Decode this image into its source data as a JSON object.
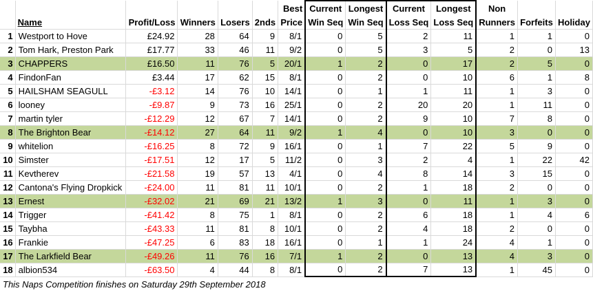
{
  "headers": {
    "name": "Name",
    "profit": "Profit/Loss",
    "winners": "Winners",
    "losers": "Losers",
    "seconds": "2nds",
    "best_top": "Best",
    "best_bottom": "Price",
    "cur_win_top": "Current",
    "cur_win_bottom": "Win Seq",
    "long_win_top": "Longest",
    "long_win_bottom": "Win Seq",
    "cur_loss_top": "Current",
    "cur_loss_bottom": "Loss Seq",
    "long_loss_top": "Longest",
    "long_loss_bottom": "Loss Seq",
    "non_top": "Non",
    "non_bottom": "Runners",
    "forfeits": "Forfeits",
    "holiday": "Holiday"
  },
  "rows": [
    {
      "rank": "1",
      "name": "Westport to Hove",
      "profit": "£24.92",
      "winners": "28",
      "losers": "64",
      "seconds": "9",
      "best": "8/1",
      "cur_win": "0",
      "long_win": "5",
      "cur_loss": "2",
      "long_loss": "11",
      "non": "1",
      "forfeits": "1",
      "holiday": "0",
      "highlight": false,
      "negative": false
    },
    {
      "rank": "2",
      "name": "Tom Hark, Preston Park",
      "profit": "£17.77",
      "winners": "33",
      "losers": "46",
      "seconds": "11",
      "best": "9/2",
      "cur_win": "0",
      "long_win": "5",
      "cur_loss": "3",
      "long_loss": "5",
      "non": "2",
      "forfeits": "0",
      "holiday": "13",
      "highlight": false,
      "negative": false
    },
    {
      "rank": "3",
      "name": "CHAPPERS",
      "profit": "£16.50",
      "winners": "11",
      "losers": "76",
      "seconds": "5",
      "best": "20/1",
      "cur_win": "1",
      "long_win": "2",
      "cur_loss": "0",
      "long_loss": "17",
      "non": "2",
      "forfeits": "5",
      "holiday": "0",
      "highlight": true,
      "negative": false
    },
    {
      "rank": "4",
      "name": "FindonFan",
      "profit": "£3.44",
      "winners": "17",
      "losers": "62",
      "seconds": "15",
      "best": "8/1",
      "cur_win": "0",
      "long_win": "2",
      "cur_loss": "0",
      "long_loss": "10",
      "non": "6",
      "forfeits": "1",
      "holiday": "8",
      "highlight": false,
      "negative": false
    },
    {
      "rank": "5",
      "name": "HAILSHAM SEAGULL",
      "profit": "-£3.12",
      "winners": "14",
      "losers": "76",
      "seconds": "10",
      "best": "14/1",
      "cur_win": "0",
      "long_win": "1",
      "cur_loss": "1",
      "long_loss": "11",
      "non": "1",
      "forfeits": "3",
      "holiday": "0",
      "highlight": false,
      "negative": true
    },
    {
      "rank": "6",
      "name": "looney",
      "profit": "-£9.87",
      "winners": "9",
      "losers": "73",
      "seconds": "16",
      "best": "25/1",
      "cur_win": "0",
      "long_win": "2",
      "cur_loss": "20",
      "long_loss": "20",
      "non": "1",
      "forfeits": "11",
      "holiday": "0",
      "highlight": false,
      "negative": true
    },
    {
      "rank": "7",
      "name": "martin tyler",
      "profit": "-£12.29",
      "winners": "12",
      "losers": "67",
      "seconds": "7",
      "best": "14/1",
      "cur_win": "0",
      "long_win": "2",
      "cur_loss": "9",
      "long_loss": "10",
      "non": "7",
      "forfeits": "8",
      "holiday": "0",
      "highlight": false,
      "negative": true
    },
    {
      "rank": "8",
      "name": "The Brighton Bear",
      "profit": "-£14.12",
      "winners": "27",
      "losers": "64",
      "seconds": "11",
      "best": "9/2",
      "cur_win": "1",
      "long_win": "4",
      "cur_loss": "0",
      "long_loss": "10",
      "non": "3",
      "forfeits": "0",
      "holiday": "0",
      "highlight": true,
      "negative": true
    },
    {
      "rank": "9",
      "name": "whitelion",
      "profit": "-£16.25",
      "winners": "8",
      "losers": "72",
      "seconds": "9",
      "best": "16/1",
      "cur_win": "0",
      "long_win": "1",
      "cur_loss": "7",
      "long_loss": "22",
      "non": "5",
      "forfeits": "9",
      "holiday": "0",
      "highlight": false,
      "negative": true
    },
    {
      "rank": "10",
      "name": "Simster",
      "profit": "-£17.51",
      "winners": "12",
      "losers": "17",
      "seconds": "5",
      "best": "11/2",
      "cur_win": "0",
      "long_win": "3",
      "cur_loss": "2",
      "long_loss": "4",
      "non": "1",
      "forfeits": "22",
      "holiday": "42",
      "highlight": false,
      "negative": true
    },
    {
      "rank": "11",
      "name": "Kevtherev",
      "profit": "-£21.58",
      "winners": "19",
      "losers": "57",
      "seconds": "13",
      "best": "4/1",
      "cur_win": "0",
      "long_win": "4",
      "cur_loss": "8",
      "long_loss": "14",
      "non": "3",
      "forfeits": "15",
      "holiday": "0",
      "highlight": false,
      "negative": true
    },
    {
      "rank": "12",
      "name": "Cantona's Flying Dropkick",
      "profit": "-£24.00",
      "winners": "11",
      "losers": "81",
      "seconds": "11",
      "best": "10/1",
      "cur_win": "0",
      "long_win": "2",
      "cur_loss": "1",
      "long_loss": "18",
      "non": "2",
      "forfeits": "0",
      "holiday": "0",
      "highlight": false,
      "negative": true
    },
    {
      "rank": "13",
      "name": "Ernest",
      "profit": "-£32.02",
      "winners": "21",
      "losers": "69",
      "seconds": "21",
      "best": "13/2",
      "cur_win": "1",
      "long_win": "3",
      "cur_loss": "0",
      "long_loss": "11",
      "non": "1",
      "forfeits": "3",
      "holiday": "0",
      "highlight": true,
      "negative": true
    },
    {
      "rank": "14",
      "name": "Trigger",
      "profit": "-£41.42",
      "winners": "8",
      "losers": "75",
      "seconds": "1",
      "best": "8/1",
      "cur_win": "0",
      "long_win": "2",
      "cur_loss": "6",
      "long_loss": "18",
      "non": "1",
      "forfeits": "4",
      "holiday": "6",
      "highlight": false,
      "negative": true
    },
    {
      "rank": "15",
      "name": "Taybha",
      "profit": "-£43.33",
      "winners": "11",
      "losers": "81",
      "seconds": "8",
      "best": "10/1",
      "cur_win": "0",
      "long_win": "2",
      "cur_loss": "4",
      "long_loss": "18",
      "non": "2",
      "forfeits": "0",
      "holiday": "0",
      "highlight": false,
      "negative": true
    },
    {
      "rank": "16",
      "name": "Frankie",
      "profit": "-£47.25",
      "winners": "6",
      "losers": "83",
      "seconds": "18",
      "best": "16/1",
      "cur_win": "0",
      "long_win": "1",
      "cur_loss": "1",
      "long_loss": "24",
      "non": "4",
      "forfeits": "1",
      "holiday": "0",
      "highlight": false,
      "negative": true
    },
    {
      "rank": "17",
      "name": "The Larkfield Bear",
      "profit": "-£49.26",
      "winners": "11",
      "losers": "76",
      "seconds": "16",
      "best": "7/1",
      "cur_win": "1",
      "long_win": "2",
      "cur_loss": "0",
      "long_loss": "13",
      "non": "4",
      "forfeits": "3",
      "holiday": "0",
      "highlight": true,
      "negative": true
    },
    {
      "rank": "18",
      "name": "albion534",
      "profit": "-£63.50",
      "winners": "4",
      "losers": "44",
      "seconds": "8",
      "best": "8/1",
      "cur_win": "0",
      "long_win": "2",
      "cur_loss": "7",
      "long_loss": "13",
      "non": "1",
      "forfeits": "45",
      "holiday": "0",
      "highlight": false,
      "negative": true
    }
  ],
  "footer": "This Naps Competition finishes on Saturday 29th September 2018",
  "colors": {
    "highlight": "#c4d79b",
    "negative": "#ff0000"
  }
}
